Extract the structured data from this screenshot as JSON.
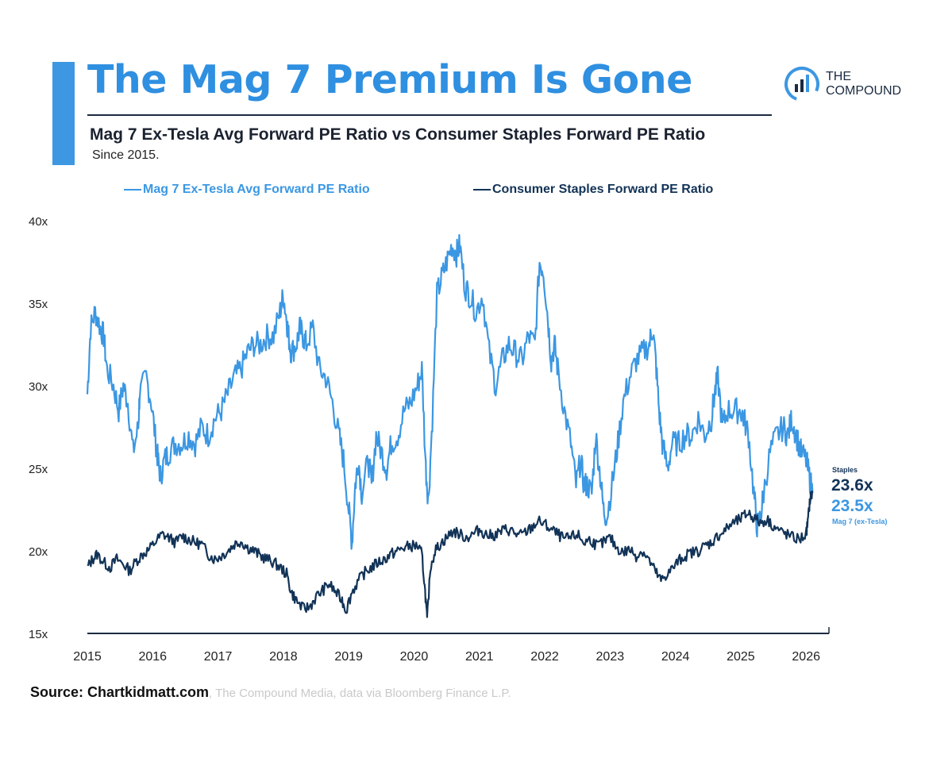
{
  "header": {
    "title": "The Mag 7 Premium Is Gone",
    "subtitle": "Mag 7 Ex-Tesla Avg Forward PE Ratio vs Consumer Staples Forward PE Ratio",
    "since": "Since 2015.",
    "logo_line1": "THE",
    "logo_line2": "COMPOUND"
  },
  "colors": {
    "accent": "#3d97e2",
    "mag7": "#3b97e2",
    "staples": "#123357",
    "axis": "#1b2b40"
  },
  "source": {
    "bold": "Source: Chartkidmatt.com",
    "rest": ", The Compound Media, data via Bloomberg Finance L.P."
  },
  "chart_data": {
    "type": "line",
    "title": "The Mag 7 Premium Is Gone",
    "xlabel": "",
    "ylabel": "",
    "xlim": [
      2015,
      2026.35
    ],
    "ylim": [
      15,
      40
    ],
    "grid": false,
    "legend_position": "top",
    "x_ticks": [
      2015,
      2016,
      2017,
      2018,
      2019,
      2020,
      2021,
      2022,
      2023,
      2024,
      2025,
      2026
    ],
    "x_tick_labels": [
      "2015",
      "2016",
      "2017",
      "2018",
      "2019",
      "2020",
      "2021",
      "2022",
      "2023",
      "2024",
      "2025",
      "2026"
    ],
    "y_ticks": [
      15,
      20,
      25,
      30,
      35,
      40
    ],
    "y_tick_labels": [
      "15x",
      "20x",
      "25x",
      "30x",
      "35x",
      "40x"
    ],
    "series": [
      {
        "name": "Mag 7 Ex-Tesla Avg Forward PE Ratio",
        "color": "#3b97e2",
        "x": [
          2015.0,
          2015.05,
          2015.12,
          2015.2,
          2015.25,
          2015.3,
          2015.4,
          2015.48,
          2015.55,
          2015.62,
          2015.7,
          2015.78,
          2015.8,
          2015.9,
          2015.98,
          2016.05,
          2016.08,
          2016.12,
          2016.18,
          2016.25,
          2016.35,
          2016.45,
          2016.55,
          2016.65,
          2016.75,
          2016.85,
          2016.95,
          2017.05,
          2017.15,
          2017.25,
          2017.35,
          2017.45,
          2017.55,
          2017.65,
          2017.75,
          2017.85,
          2017.95,
          2018.0,
          2018.05,
          2018.08,
          2018.12,
          2018.2,
          2018.25,
          2018.3,
          2018.35,
          2018.45,
          2018.55,
          2018.65,
          2018.75,
          2018.85,
          2018.92,
          2019.0,
          2019.05,
          2019.1,
          2019.15,
          2019.2,
          2019.3,
          2019.35,
          2019.42,
          2019.5,
          2019.58,
          2019.65,
          2019.75,
          2019.85,
          2019.95,
          2020.05,
          2020.12,
          2020.18,
          2020.22,
          2020.28,
          2020.35,
          2020.42,
          2020.5,
          2020.58,
          2020.65,
          2020.7,
          2020.78,
          2020.85,
          2020.95,
          2021.05,
          2021.15,
          2021.25,
          2021.35,
          2021.45,
          2021.55,
          2021.65,
          2021.75,
          2021.85,
          2021.92,
          2021.98,
          2022.05,
          2022.1,
          2022.15,
          2022.2,
          2022.3,
          2022.4,
          2022.48,
          2022.55,
          2022.6,
          2022.65,
          2022.72,
          2022.78,
          2022.85,
          2022.9,
          2022.95,
          2023.05,
          2023.12,
          2023.2,
          2023.3,
          2023.4,
          2023.5,
          2023.6,
          2023.65,
          2023.7,
          2023.75,
          2023.8,
          2023.88,
          2023.95,
          2024.05,
          2024.15,
          2024.25,
          2024.35,
          2024.45,
          2024.55,
          2024.6,
          2024.65,
          2024.72,
          2024.8,
          2024.9,
          2025.0,
          2025.05,
          2025.12,
          2025.2,
          2025.25,
          2025.3,
          2025.35,
          2025.45,
          2025.55,
          2025.65,
          2025.72,
          2025.78,
          2025.85,
          2025.92,
          2026.0,
          2026.05,
          2026.1
        ],
        "values": [
          29.5,
          33.5,
          34.5,
          33.5,
          33.0,
          31.0,
          30.0,
          28.5,
          30.0,
          29.0,
          26.0,
          27.5,
          29.5,
          30.5,
          29.0,
          26.5,
          25.5,
          24.5,
          25.5,
          26.0,
          26.5,
          26.5,
          27.0,
          26.5,
          27.5,
          27.0,
          28.0,
          28.5,
          29.5,
          30.5,
          31.0,
          32.0,
          32.5,
          32.5,
          33.0,
          33.0,
          34.5,
          35.5,
          34.0,
          33.0,
          32.0,
          32.5,
          33.5,
          33.0,
          32.5,
          33.5,
          31.0,
          30.5,
          29.0,
          27.0,
          25.5,
          22.5,
          20.5,
          24.0,
          25.5,
          23.5,
          25.5,
          24.0,
          27.0,
          26.0,
          25.0,
          26.5,
          27.0,
          28.5,
          29.0,
          30.0,
          31.0,
          25.0,
          23.0,
          28.0,
          35.5,
          36.5,
          37.5,
          38.5,
          38.0,
          38.5,
          36.0,
          35.5,
          34.5,
          35.5,
          32.0,
          30.0,
          31.5,
          32.5,
          32.0,
          31.5,
          33.0,
          32.5,
          37.5,
          37.0,
          34.0,
          31.5,
          32.5,
          31.0,
          28.5,
          26.5,
          24.0,
          25.5,
          24.0,
          24.0,
          23.5,
          27.0,
          24.5,
          22.5,
          22.0,
          24.5,
          26.5,
          29.0,
          30.5,
          31.5,
          32.0,
          32.5,
          33.5,
          31.5,
          28.5,
          26.5,
          25.0,
          26.5,
          26.5,
          27.0,
          27.0,
          28.0,
          27.0,
          28.0,
          29.5,
          30.5,
          27.5,
          28.5,
          28.5,
          28.5,
          28.0,
          27.0,
          23.5,
          21.5,
          22.0,
          23.5,
          26.0,
          27.0,
          27.5,
          27.0,
          28.0,
          27.0,
          26.0,
          25.5,
          24.5,
          23.5
        ]
      },
      {
        "name": "Consumer Staples Forward PE Ratio",
        "color": "#123357",
        "x": [
          2015.0,
          2015.08,
          2015.15,
          2015.25,
          2015.35,
          2015.45,
          2015.55,
          2015.65,
          2015.75,
          2015.85,
          2015.95,
          2016.05,
          2016.15,
          2016.25,
          2016.35,
          2016.45,
          2016.55,
          2016.65,
          2016.75,
          2016.85,
          2016.95,
          2017.05,
          2017.15,
          2017.25,
          2017.35,
          2017.45,
          2017.55,
          2017.65,
          2017.75,
          2017.85,
          2017.95,
          2018.05,
          2018.12,
          2018.2,
          2018.3,
          2018.4,
          2018.5,
          2018.6,
          2018.7,
          2018.8,
          2018.9,
          2018.96,
          2019.05,
          2019.15,
          2019.25,
          2019.35,
          2019.45,
          2019.55,
          2019.65,
          2019.75,
          2019.85,
          2019.95,
          2020.05,
          2020.12,
          2020.17,
          2020.2,
          2020.25,
          2020.32,
          2020.4,
          2020.5,
          2020.6,
          2020.7,
          2020.8,
          2020.9,
          2021.0,
          2021.1,
          2021.2,
          2021.3,
          2021.4,
          2021.5,
          2021.6,
          2021.7,
          2021.8,
          2021.9,
          2022.0,
          2022.1,
          2022.2,
          2022.3,
          2022.4,
          2022.5,
          2022.6,
          2022.7,
          2022.8,
          2022.9,
          2023.0,
          2023.1,
          2023.2,
          2023.3,
          2023.4,
          2023.5,
          2023.6,
          2023.7,
          2023.78,
          2023.85,
          2023.95,
          2024.05,
          2024.15,
          2024.25,
          2024.35,
          2024.45,
          2024.55,
          2024.65,
          2024.75,
          2024.85,
          2024.95,
          2025.05,
          2025.12,
          2025.2,
          2025.3,
          2025.4,
          2025.5,
          2025.6,
          2025.7,
          2025.8,
          2025.9,
          2026.0,
          2026.03,
          2026.06,
          2026.1
        ],
        "values": [
          19.0,
          19.5,
          19.8,
          19.3,
          19.0,
          19.5,
          19.2,
          18.8,
          19.4,
          19.8,
          20.1,
          20.6,
          21.0,
          20.8,
          20.5,
          20.9,
          20.7,
          20.5,
          20.4,
          19.8,
          19.5,
          19.7,
          20.0,
          20.4,
          20.6,
          20.2,
          20.0,
          19.7,
          19.5,
          19.3,
          19.0,
          18.6,
          17.5,
          17.0,
          16.5,
          16.6,
          17.2,
          17.6,
          18.0,
          17.5,
          17.0,
          16.4,
          17.5,
          18.2,
          18.7,
          19.0,
          19.3,
          19.5,
          19.8,
          20.0,
          20.2,
          20.3,
          20.3,
          19.8,
          17.5,
          15.8,
          19.0,
          20.0,
          20.4,
          20.8,
          21.2,
          21.0,
          20.8,
          21.0,
          21.3,
          21.0,
          20.9,
          21.1,
          21.3,
          21.2,
          20.9,
          21.1,
          21.4,
          21.8,
          21.6,
          21.3,
          21.0,
          20.7,
          20.8,
          21.0,
          20.5,
          20.7,
          20.3,
          20.5,
          20.8,
          20.2,
          19.9,
          20.1,
          19.7,
          20.0,
          19.4,
          18.7,
          18.2,
          18.5,
          18.9,
          19.4,
          19.7,
          19.9,
          20.0,
          20.3,
          20.5,
          20.9,
          21.2,
          21.6,
          21.8,
          22.1,
          22.3,
          22.0,
          21.7,
          21.9,
          21.5,
          21.2,
          21.0,
          20.8,
          20.7,
          21.0,
          21.9,
          23.1,
          23.6
        ]
      }
    ],
    "annotations": [
      {
        "label": "Staples",
        "value": "23.6x"
      },
      {
        "label": "Mag 7 (ex-Tesla)",
        "value": "23.5x"
      }
    ]
  }
}
